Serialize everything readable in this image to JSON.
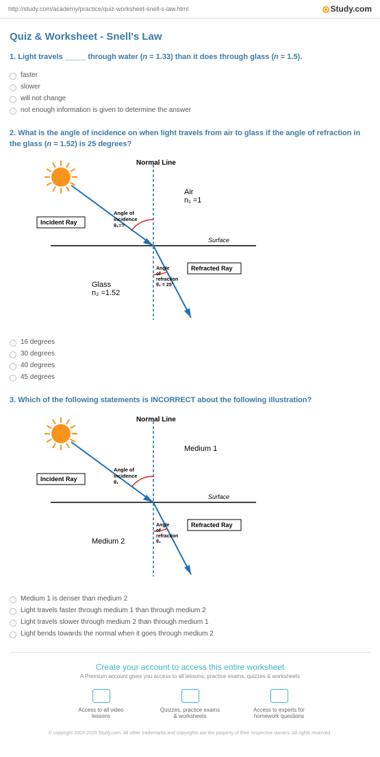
{
  "topbar": {
    "url": "http://study.com/academy/practice/quiz-worksheet-snell-s-law.html",
    "logo_text": "Study.com"
  },
  "title": "Quiz & Worksheet - Snell's Law",
  "questions": [
    {
      "number": "1.",
      "text_html": "Light travels _____ through water (<i>n</i> = 1.33) than it does through glass (<i>n</i> = 1.5).",
      "options": [
        "faster",
        "slower",
        "will not change",
        "not enough information is given to determine the answer"
      ]
    },
    {
      "number": "2.",
      "text_html": "What is the angle of incidence on when light travels from air to glass if the angle of refraction in the glass (<i>n</i> = 1.52) is 25 degrees?",
      "diagram": {
        "normal_label": "Normal Line",
        "incident_label": "Incident Ray",
        "refracted_label": "Refracted Ray",
        "surface_label": "Surface",
        "medium1": "Air\nn₁ =1",
        "medium2": "Glass\nn₂ =1.52",
        "angle1_label": "Angle of\nincidence\nθ₁=?",
        "angle2_label": "Angle\nof\nrefraction\nθ₂ = 25°",
        "colors": {
          "ray": "#1e6fb5",
          "arc1": "#d22",
          "arc2": "#d22",
          "sun": "#f7941e",
          "normal": "#1e6fb5"
        }
      },
      "options": [
        "16 degrees",
        "30 degrees",
        "40 degrees",
        "45 degrees"
      ]
    },
    {
      "number": "3.",
      "text_html": "Which of the following statements is INCORRECT about the following illustration?",
      "diagram": {
        "normal_label": "Normal Line",
        "incident_label": "Incident Ray",
        "refracted_label": "Refracted Ray",
        "surface_label": "Surface",
        "medium1": "Medium 1",
        "medium2": "Medium 2",
        "angle1_label": "Angle of\nincidence\nθ₁",
        "angle2_label": "Angle\nof\nrefraction\nθ₂",
        "colors": {
          "ray": "#1e6fb5",
          "arc1": "#d22",
          "arc2": "#d22",
          "sun": "#f7941e",
          "normal": "#1e6fb5"
        }
      },
      "options": [
        "Medium 1 is denser than medium 2",
        "Light travels faster through medium 1 than through medium 2",
        "Light travels slower through medium 2 than through medium 1",
        "Light bends towards the normal when it goes through medium 2"
      ]
    }
  ],
  "cta": {
    "title": "Create your account to access this entire worksheet",
    "subtitle": "A Premium account gives you access to all lessons, practice exams, quizzes & worksheets",
    "items": [
      "Access to all video lessons",
      "Quizzes, practice exams & worksheets",
      "Access to experts for homework questions"
    ]
  },
  "copyright": "© copyright 2003-2020 Study.com. All other trademarks and copyrights are the property of their respective owners. All rights reserved."
}
